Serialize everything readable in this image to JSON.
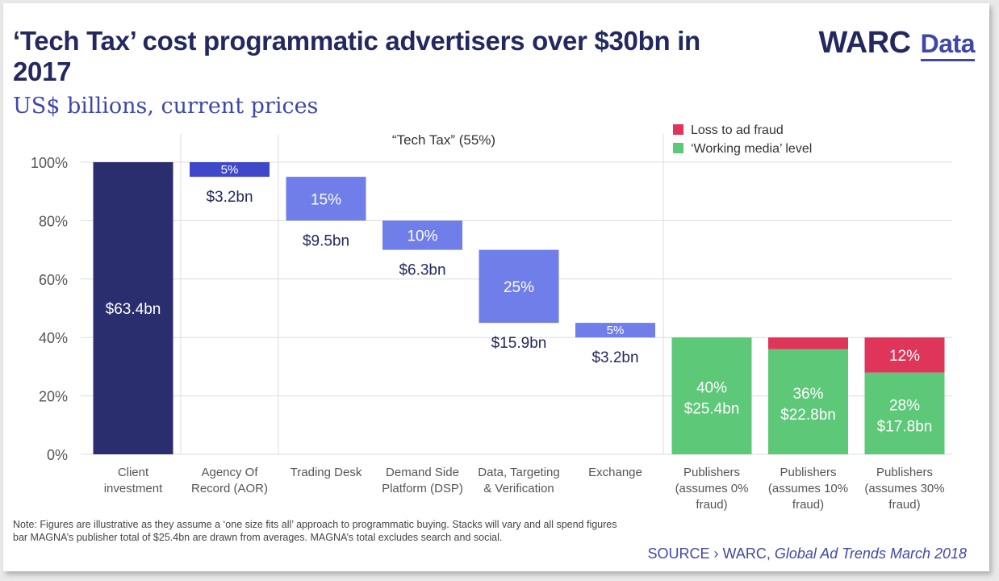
{
  "title": "‘Tech Tax’ cost programmatic advertisers over $30bn in 2017",
  "subtitle": "US$ billions, current prices",
  "logo": {
    "brand": "WARC",
    "product": "Data"
  },
  "annotation": "“Tech Tax” (55%)",
  "note": "Note: Figures are illustrative as they assume a ‘one size fits all’ approach to programmatic buying. Stacks will vary and all spend figures bar MAGNA’s publisher total of $25.4bn are drawn from averages. MAGNA’s total excludes search and social.",
  "source": {
    "prefix": "SOURCE › WARC, ",
    "publication": "Global Ad Trends March 2018"
  },
  "colors": {
    "client": "#2b2e6e",
    "aor": "#3f48c8",
    "tech": "#6f7ee8",
    "working_media": "#5cc878",
    "fraud": "#e0355a",
    "value_label_dark": "#23295e",
    "grid": "#dddddd"
  },
  "chart_data": {
    "type": "bar",
    "subtype": "waterfall",
    "ylim": [
      0,
      100
    ],
    "yticks": [
      "0%",
      "20%",
      "40%",
      "60%",
      "80%",
      "100%"
    ],
    "grid": true,
    "legend": {
      "position": "top-right",
      "items": [
        {
          "name": "Loss to ad fraud",
          "color": "#e0355a"
        },
        {
          "name": "‘Working media’ level",
          "color": "#5cc878"
        }
      ]
    },
    "categories": [
      [
        "Client",
        "investment"
      ],
      [
        "Agency Of",
        "Record (AOR)"
      ],
      [
        "Trading Desk"
      ],
      [
        "Demand Side",
        "Platform (DSP)"
      ],
      [
        "Data, Targeting",
        "& Verification"
      ],
      [
        "Exchange"
      ],
      [
        "Publishers",
        "(assumes 0%",
        "fraud)"
      ],
      [
        "Publishers",
        "(assumes 10%",
        "fraud)"
      ],
      [
        "Publishers",
        "(assumes 30%",
        "fraud)"
      ]
    ],
    "bars": [
      {
        "kind": "client",
        "base": 0,
        "top": 100,
        "inner_label": "$63.4bn"
      },
      {
        "kind": "aor",
        "base": 95,
        "top": 100,
        "inner_label": "5%",
        "below_label": "$3.2bn"
      },
      {
        "kind": "tech",
        "base": 80,
        "top": 95,
        "inner_label": "15%",
        "below_label": "$9.5bn"
      },
      {
        "kind": "tech",
        "base": 70,
        "top": 80,
        "inner_label": "10%",
        "below_label": "$6.3bn"
      },
      {
        "kind": "tech",
        "base": 45,
        "top": 70,
        "inner_label": "25%",
        "below_label": "$15.9bn"
      },
      {
        "kind": "tech",
        "base": 40,
        "top": 45,
        "inner_label": "5%",
        "below_label": "$3.2bn"
      },
      {
        "kind": "publisher",
        "working": 40,
        "fraud": 0,
        "working_label": [
          "40%",
          "$25.4bn"
        ]
      },
      {
        "kind": "publisher",
        "working": 36,
        "fraud": 4,
        "working_label": [
          "36%",
          "$22.8bn"
        ]
      },
      {
        "kind": "publisher",
        "working": 28,
        "fraud": 12,
        "working_label": [
          "28%",
          "$17.8bn"
        ],
        "fraud_label": "12%"
      }
    ]
  }
}
